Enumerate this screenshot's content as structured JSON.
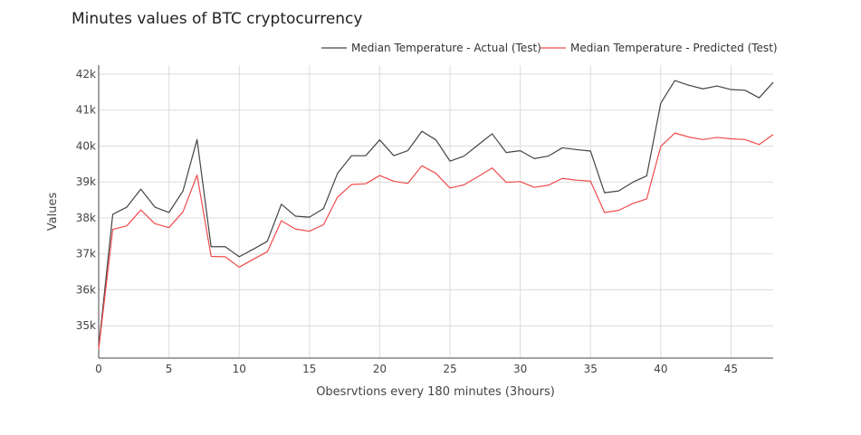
{
  "chart_data": {
    "type": "line",
    "title": "Minutes values of BTC cryptocurrency",
    "xlabel": "Obesrvtions every 180 minutes (3hours)",
    "ylabel": "Values",
    "xlim": [
      0,
      48
    ],
    "ylim": [
      34100,
      42250
    ],
    "x_ticks": [
      0,
      5,
      10,
      15,
      20,
      25,
      30,
      35,
      40,
      45
    ],
    "y_ticks": [
      {
        "value": 35000,
        "label": "35k"
      },
      {
        "value": 36000,
        "label": "36k"
      },
      {
        "value": 37000,
        "label": "37k"
      },
      {
        "value": 38000,
        "label": "38k"
      },
      {
        "value": 39000,
        "label": "39k"
      },
      {
        "value": 40000,
        "label": "40k"
      },
      {
        "value": 41000,
        "label": "41k"
      },
      {
        "value": 42000,
        "label": "42k"
      }
    ],
    "grid": true,
    "legend_position": "top-right",
    "x": [
      0,
      1,
      2,
      3,
      4,
      5,
      6,
      7,
      8,
      9,
      10,
      11,
      12,
      13,
      14,
      15,
      16,
      17,
      18,
      19,
      20,
      21,
      22,
      23,
      24,
      25,
      26,
      27,
      28,
      29,
      30,
      31,
      32,
      33,
      34,
      35,
      36,
      37,
      38,
      39,
      40,
      41,
      42,
      43,
      44,
      45,
      46,
      47,
      48
    ],
    "series": [
      {
        "name": "Median Temperature - Actual (Test)",
        "color": "#444444",
        "values": [
          34400,
          38100,
          38300,
          38800,
          38300,
          38150,
          38750,
          40180,
          37200,
          37200,
          36920,
          37130,
          37350,
          38380,
          38050,
          38020,
          38260,
          39240,
          39730,
          39730,
          40170,
          39730,
          39870,
          40410,
          40170,
          39580,
          39720,
          40030,
          40340,
          39820,
          39870,
          39650,
          39720,
          39950,
          39900,
          39860,
          38700,
          38750,
          38990,
          39170,
          41190,
          41820,
          41690,
          41590,
          41670,
          41570,
          41550,
          41340,
          41770
        ]
      },
      {
        "name": "Median Temperature - Predicted (Test)",
        "color": "#ef4b4b",
        "values": [
          34350,
          37680,
          37780,
          38220,
          37840,
          37730,
          38170,
          39190,
          36930,
          36920,
          36630,
          36850,
          37060,
          37920,
          37690,
          37630,
          37810,
          38580,
          38930,
          38950,
          39180,
          39020,
          38960,
          39450,
          39240,
          38830,
          38920,
          39150,
          39390,
          38990,
          39010,
          38850,
          38910,
          39100,
          39050,
          39020,
          38150,
          38210,
          38400,
          38530,
          39990,
          40360,
          40250,
          40180,
          40240,
          40200,
          40180,
          40040,
          40320
        ]
      }
    ]
  }
}
